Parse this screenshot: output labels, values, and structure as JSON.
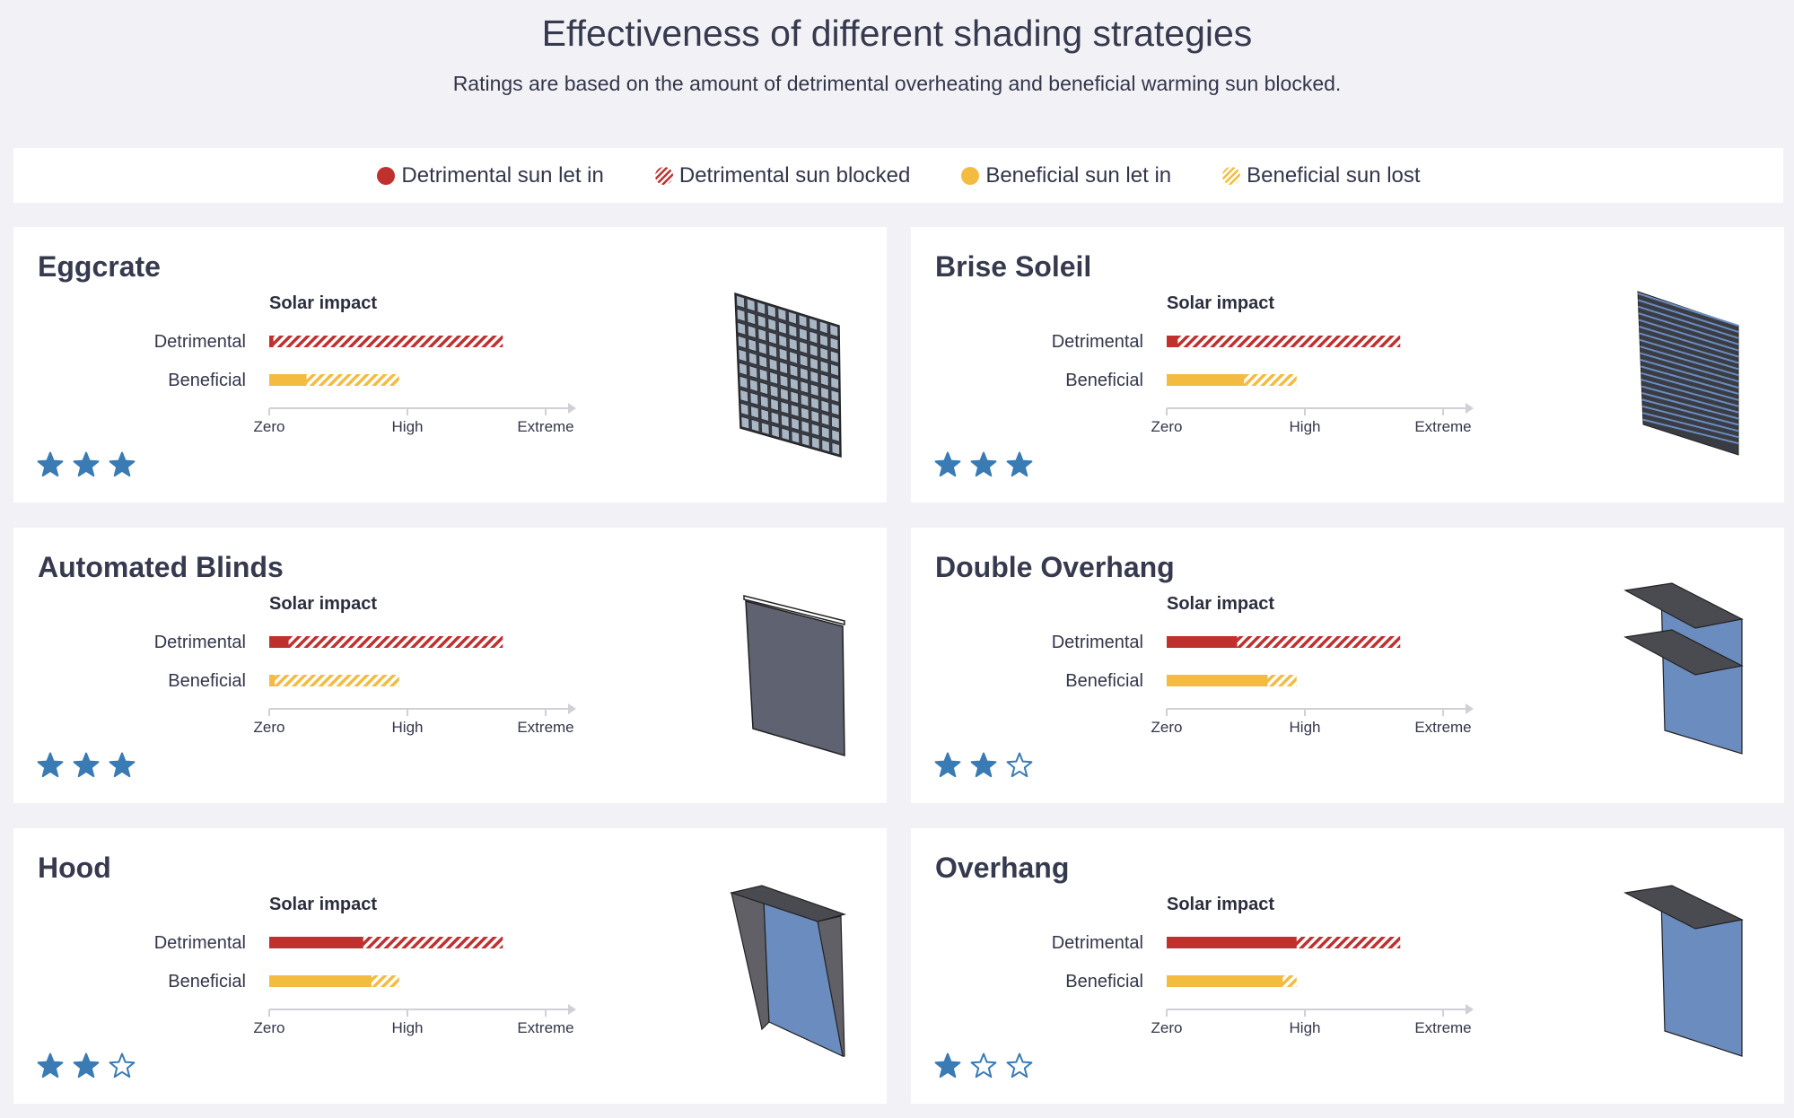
{
  "header": {
    "title": "Effectiveness of different shading strategies",
    "subtitle": "Ratings are based on the amount of detrimental overheating and beneficial warming sun blocked."
  },
  "legend": [
    {
      "label": "Detrimental sun let in",
      "color": "#c0302f",
      "pattern": "solid"
    },
    {
      "label": "Detrimental sun blocked",
      "color": "#c0302f",
      "pattern": "hatched"
    },
    {
      "label": "Beneficial sun let in",
      "color": "#f3bc41",
      "pattern": "solid"
    },
    {
      "label": "Beneficial sun lost",
      "color": "#f3bc41",
      "pattern": "hatched"
    }
  ],
  "colors": {
    "detrimental": "#c0302f",
    "beneficial": "#f3bc41",
    "star": "#3a7bb4",
    "panel_blue": "#6b8cbf",
    "panel_dark": "#5f6270",
    "overhang": "#4a4b50"
  },
  "chart_data": [
    {
      "type": "bar",
      "name": "Eggcrate",
      "title": "Solar impact",
      "categories": [
        "Detrimental",
        "Beneficial"
      ],
      "let_in": [
        0.03,
        0.27
      ],
      "total": [
        1.69,
        0.94
      ],
      "ticks": [
        "Zero",
        "High",
        "Extreme"
      ],
      "tick_values": [
        0,
        1,
        2
      ],
      "rating": 3,
      "icon": "eggcrate-icon"
    },
    {
      "type": "bar",
      "name": "Brise Soleil",
      "title": "Solar impact",
      "categories": [
        "Detrimental",
        "Beneficial"
      ],
      "let_in": [
        0.08,
        0.56
      ],
      "total": [
        1.69,
        0.94
      ],
      "ticks": [
        "Zero",
        "High",
        "Extreme"
      ],
      "tick_values": [
        0,
        1,
        2
      ],
      "rating": 3,
      "icon": "brise-soleil-icon"
    },
    {
      "type": "bar",
      "name": "Automated Blinds",
      "title": "Solar impact",
      "categories": [
        "Detrimental",
        "Beneficial"
      ],
      "let_in": [
        0.14,
        0.04
      ],
      "total": [
        1.69,
        0.94
      ],
      "ticks": [
        "Zero",
        "High",
        "Extreme"
      ],
      "tick_values": [
        0,
        1,
        2
      ],
      "rating": 3,
      "icon": "blinds-icon"
    },
    {
      "type": "bar",
      "name": "Double Overhang",
      "title": "Solar impact",
      "categories": [
        "Detrimental",
        "Beneficial"
      ],
      "let_in": [
        0.51,
        0.73
      ],
      "total": [
        1.69,
        0.94
      ],
      "ticks": [
        "Zero",
        "High",
        "Extreme"
      ],
      "tick_values": [
        0,
        1,
        2
      ],
      "rating": 2,
      "icon": "double-overhang-icon"
    },
    {
      "type": "bar",
      "name": "Hood",
      "title": "Solar impact",
      "categories": [
        "Detrimental",
        "Beneficial"
      ],
      "let_in": [
        0.68,
        0.74
      ],
      "total": [
        1.69,
        0.94
      ],
      "ticks": [
        "Zero",
        "High",
        "Extreme"
      ],
      "tick_values": [
        0,
        1,
        2
      ],
      "rating": 2,
      "icon": "hood-icon"
    },
    {
      "type": "bar",
      "name": "Overhang",
      "title": "Solar impact",
      "categories": [
        "Detrimental",
        "Beneficial"
      ],
      "let_in": [
        0.94,
        0.84
      ],
      "total": [
        1.69,
        0.94
      ],
      "ticks": [
        "Zero",
        "High",
        "Extreme"
      ],
      "tick_values": [
        0,
        1,
        2
      ],
      "rating": 1,
      "icon": "overhang-icon"
    }
  ]
}
